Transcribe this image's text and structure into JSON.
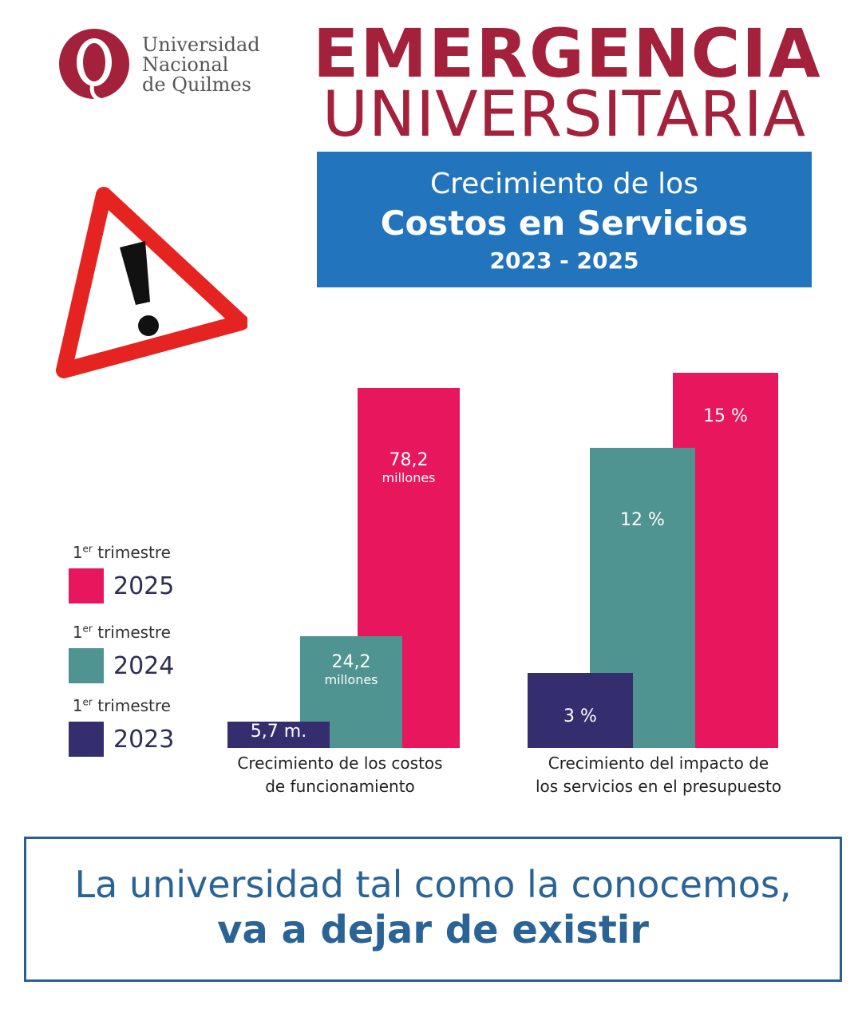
{
  "logo": {
    "lines": [
      "Universidad",
      "Nacional",
      "de Quilmes"
    ]
  },
  "header": {
    "title_line1": "EMERGENCIA",
    "title_line2": "UNIVERSITARIA"
  },
  "banner": {
    "line1": "Crecimiento de los",
    "line2": "Costos en Servicios",
    "line3": "2023 - 2025"
  },
  "legend": [
    {
      "caption_pre": "1",
      "caption_sup": "er",
      "caption_post": " trimestre",
      "year": "2025",
      "color": "#e8175d"
    },
    {
      "caption_pre": "1",
      "caption_sup": "er",
      "caption_post": " trimestre",
      "year": "2024",
      "color": "#4f9490"
    },
    {
      "caption_pre": "1",
      "caption_sup": "er",
      "caption_post": " trimestre",
      "year": "2023",
      "color": "#352e6e"
    }
  ],
  "chart_data": [
    {
      "type": "bar",
      "title": "Crecimiento de los costos de funcionamiento",
      "xlabel": [
        "Crecimiento de los costos",
        "de funcionamiento"
      ],
      "unit": "millones",
      "series": [
        {
          "name": "2023",
          "value": 5.7,
          "label": "5,7 m.",
          "sublabel": ""
        },
        {
          "name": "2024",
          "value": 24.2,
          "label": "24,2",
          "sublabel": "millones"
        },
        {
          "name": "2025",
          "value": 78.2,
          "label": "78,2",
          "sublabel": "millones"
        }
      ]
    },
    {
      "type": "bar",
      "title": "Crecimiento del impacto de los servicios en el presupuesto",
      "xlabel": [
        "Crecimiento del impacto de",
        "los servicios en el presupuesto"
      ],
      "unit": "%",
      "series": [
        {
          "name": "2023",
          "value": 3,
          "label": "3 %",
          "sublabel": ""
        },
        {
          "name": "2024",
          "value": 12,
          "label": "12 %",
          "sublabel": ""
        },
        {
          "name": "2025",
          "value": 15,
          "label": "15  %",
          "sublabel": ""
        }
      ]
    }
  ],
  "footer": {
    "line1": "La universidad tal como la conocemos,",
    "line2": "va a dejar de existir"
  }
}
